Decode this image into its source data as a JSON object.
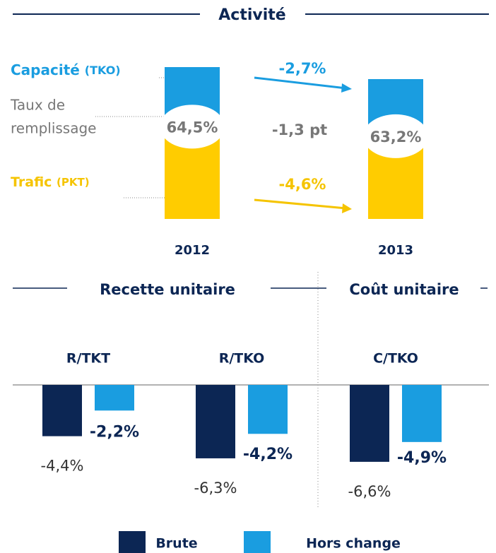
{
  "activity": {
    "title": "Activité",
    "capacity_label": "Capacité",
    "capacity_unit": "(TKO)",
    "load_label_lines": [
      "Taux de",
      "remplissage"
    ],
    "traffic_label": "Trafic",
    "traffic_unit": "(PKT)",
    "years": [
      "2012",
      "2013"
    ],
    "load_factor": {
      "values": [
        64.5,
        63.2
      ],
      "value_labels": [
        "64,5%",
        "63,2%"
      ]
    },
    "capacity_change": "-2,7%",
    "load_change": "-1,3 pt",
    "traffic_change": "-4,6%"
  },
  "unit_charts": {
    "revenue_title": "Recette unitaire",
    "cost_title": "Coût unitaire",
    "categories": [
      "R/TKT",
      "R/TKO",
      "C/TKO"
    ],
    "series": [
      {
        "name": "Brute",
        "color": "#0c2654",
        "values": [
          -4.4,
          -6.3,
          -6.6
        ],
        "value_labels": [
          "-4,4%",
          "-6,3%",
          "-6,6%"
        ]
      },
      {
        "name": "Hors change",
        "color": "#1a9de0",
        "values": [
          -2.2,
          -4.2,
          -4.9
        ],
        "value_labels": [
          "-2,2%",
          "-4,2%",
          "-4,9%"
        ]
      }
    ]
  }
}
